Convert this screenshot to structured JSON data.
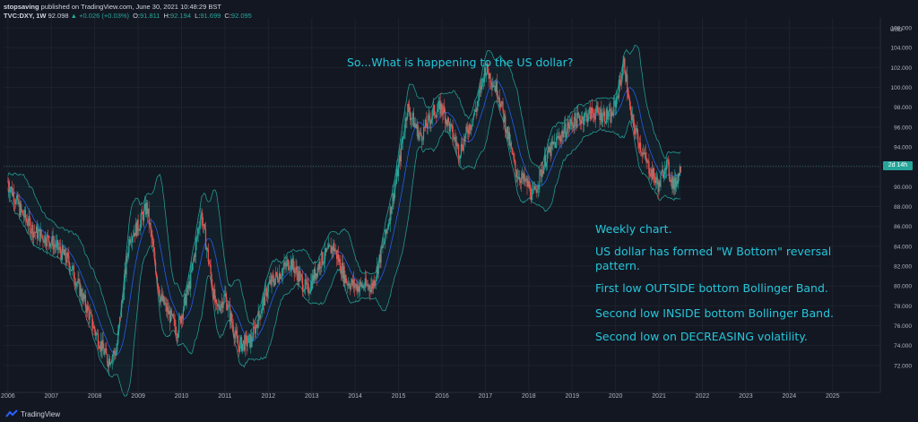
{
  "header": {
    "line1_user": "stopsaving",
    "line1_rest": " published on TradingView.com, June 30, 2021 10:48:29 BST",
    "symbol": "TVC:DXY, 1W",
    "last": "92.098",
    "change": "▲ +0.026 (+0.03%)",
    "open_label": "O:",
    "open": "91.811",
    "high_label": "H:",
    "high": "92.194",
    "low_label": "L:",
    "low": "91.699",
    "close_label": "C:",
    "close": "92.095"
  },
  "price_tag": "2d 14h",
  "currency": "USD",
  "footer": {
    "brand": "TradingView"
  },
  "colors": {
    "background": "#131722",
    "up": "#26a69a",
    "down": "#ef5350",
    "band": "#26a69a",
    "basis": "#2962ff",
    "annotation": "#26c6da"
  },
  "annotations": {
    "title": "So...What is happening to the US dollar?",
    "lines": [
      "Weekly chart.",
      "US dollar has formed \"W Bottom\" reversal",
      "pattern.",
      "First low OUTSIDE bottom Bollinger Band.",
      "Second low INSIDE bottom Bollinger Band.",
      "Second low on DECREASING volatility."
    ]
  },
  "chart_data": {
    "type": "line",
    "subtype": "candlestick_with_bollinger_bands",
    "symbol": "TVC:DXY",
    "interval": "1W",
    "x_ticks": [
      "2006",
      "2007",
      "2008",
      "2009",
      "2010",
      "2011",
      "2012",
      "2013",
      "2014",
      "2015",
      "2016",
      "2017",
      "2018",
      "2019",
      "2020",
      "2021",
      "2022",
      "2023",
      "2024",
      "2025"
    ],
    "y_ticks": [
      "72.000",
      "74.000",
      "76.000",
      "78.000",
      "80.000",
      "82.000",
      "84.000",
      "86.000",
      "88.000",
      "90.000",
      "92.000",
      "94.000",
      "96.000",
      "98.000",
      "100.000",
      "102.000",
      "104.000",
      "106.000"
    ],
    "ylim": [
      70,
      107
    ],
    "xlim": [
      2005.9,
      2026.1
    ],
    "current_price": 92.095,
    "series": [
      {
        "name": "DXY",
        "x": [
          2006.0,
          2006.3,
          2006.6,
          2007.0,
          2007.4,
          2007.8,
          2008.0,
          2008.3,
          2008.5,
          2008.8,
          2009.0,
          2009.2,
          2009.5,
          2009.9,
          2010.2,
          2010.45,
          2010.8,
          2011.0,
          2011.3,
          2011.6,
          2012.0,
          2012.5,
          2012.9,
          2013.2,
          2013.5,
          2013.8,
          2014.0,
          2014.4,
          2014.7,
          2015.0,
          2015.2,
          2015.5,
          2015.8,
          2016.0,
          2016.4,
          2016.8,
          2017.0,
          2017.3,
          2017.7,
          2018.0,
          2018.1,
          2018.4,
          2018.7,
          2019.0,
          2019.5,
          2019.9,
          2020.0,
          2020.2,
          2020.35,
          2020.7,
          2021.0,
          2021.15,
          2021.35,
          2021.5
        ],
        "values": [
          90.5,
          87.5,
          85.5,
          84.5,
          82.5,
          78.0,
          75.5,
          72.5,
          73.5,
          85.0,
          86.0,
          88.0,
          79.0,
          75.5,
          80.5,
          87.5,
          77.5,
          79.0,
          74.0,
          74.5,
          80.0,
          82.5,
          79.5,
          82.5,
          84.0,
          80.5,
          80.0,
          80.0,
          85.0,
          92.0,
          98.0,
          95.0,
          97.5,
          98.0,
          93.5,
          98.0,
          102.0,
          99.5,
          91.5,
          90.0,
          89.0,
          93.0,
          95.0,
          96.5,
          97.5,
          97.0,
          98.5,
          102.5,
          97.0,
          92.5,
          90.0,
          92.5,
          90.0,
          92.0
        ]
      }
    ]
  }
}
